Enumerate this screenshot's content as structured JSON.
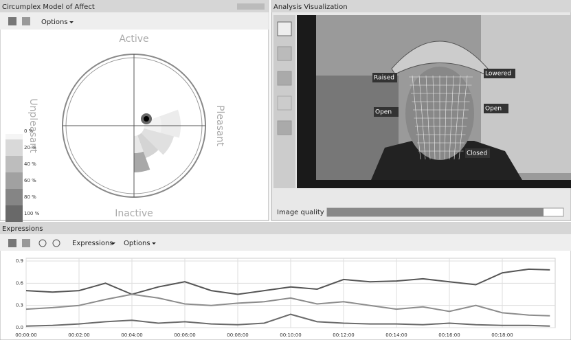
{
  "panels": {
    "circumplex": {
      "title": "Circumplex Model of Affect",
      "options": "Options",
      "axes": {
        "top": "Active",
        "bottom": "Inactive",
        "left": "Unpleasant",
        "right": "Pleasant"
      },
      "legend": [
        "0 %",
        "20 %",
        "40 %",
        "60 %",
        "80 %",
        "100 %"
      ]
    },
    "analysis": {
      "title": "Analysis Visualization",
      "annotations": [
        "Raised",
        "Lowered",
        "Open",
        "Open",
        "Closed"
      ],
      "image_quality": "Image quality"
    },
    "expressions": {
      "title": "Expressions",
      "menu": "Expressions",
      "options": "Options"
    }
  },
  "chart_data": {
    "type": "line",
    "x": [
      0,
      1,
      2,
      3,
      4,
      5,
      6,
      7,
      8,
      9,
      10,
      11,
      12,
      13,
      14,
      15,
      16,
      17,
      18,
      19,
      19.8
    ],
    "series": [
      {
        "color": "#555555",
        "values": [
          0.5,
          0.48,
          0.5,
          0.6,
          0.45,
          0.55,
          0.62,
          0.5,
          0.45,
          0.5,
          0.55,
          0.52,
          0.65,
          0.62,
          0.63,
          0.66,
          0.62,
          0.58,
          0.74,
          0.79,
          0.78
        ]
      },
      {
        "color": "#8c8c8c",
        "values": [
          0.25,
          0.27,
          0.3,
          0.38,
          0.45,
          0.4,
          0.32,
          0.3,
          0.33,
          0.35,
          0.4,
          0.32,
          0.35,
          0.3,
          0.25,
          0.28,
          0.22,
          0.3,
          0.2,
          0.17,
          0.16
        ]
      },
      {
        "color": "#6a6a6a",
        "values": [
          0.02,
          0.03,
          0.05,
          0.08,
          0.1,
          0.06,
          0.08,
          0.05,
          0.04,
          0.06,
          0.18,
          0.08,
          0.06,
          0.05,
          0.05,
          0.04,
          0.06,
          0.04,
          0.03,
          0.03,
          0.02
        ]
      }
    ],
    "xlim": [
      0,
      20
    ],
    "xticks": [
      {
        "value": 0,
        "label": "00:00:00"
      },
      {
        "value": 2,
        "label": "00:02:00"
      },
      {
        "value": 4,
        "label": "00:04:00"
      },
      {
        "value": 6,
        "label": "00:06:00"
      },
      {
        "value": 8,
        "label": "00:08:00"
      },
      {
        "value": 10,
        "label": "00:10:00"
      },
      {
        "value": 12,
        "label": "00:12:00"
      },
      {
        "value": 14,
        "label": "00:14:00"
      },
      {
        "value": 16,
        "label": "00:16:00"
      },
      {
        "value": 18,
        "label": "00:18:00"
      }
    ],
    "ylim": [
      0,
      0.9
    ],
    "yticks": [
      {
        "value": 0,
        "label": "0.0"
      },
      0.3,
      0.6,
      0.9
    ],
    "grid": true
  }
}
